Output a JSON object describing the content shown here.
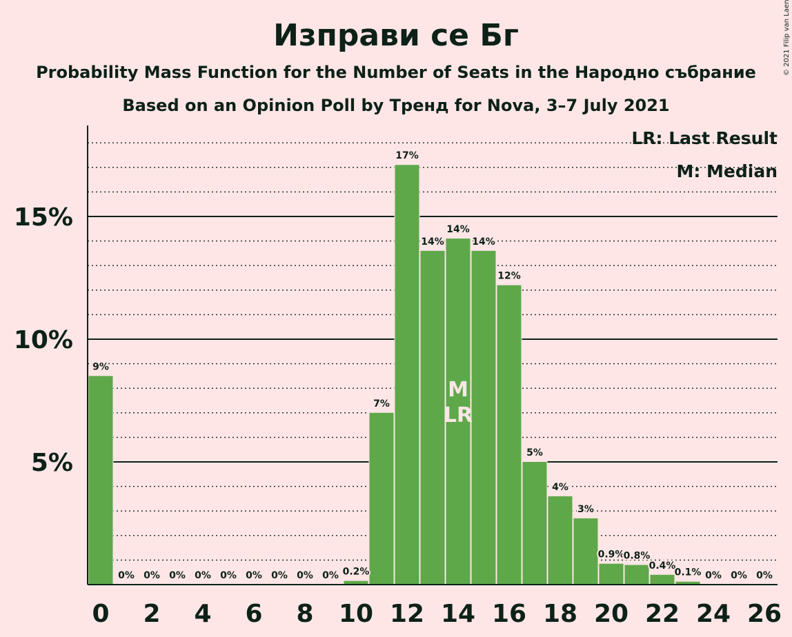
{
  "title": "Изправи се Бг",
  "subtitle": "Probability Mass Function for the Number of Seats in the Народно събрание",
  "subtitle2": "Based on an Opinion Poll by Тренд for Nova, 3–7 July 2021",
  "credit": "© 2021 Filip van Laenen",
  "legend": {
    "last_result": "LR: Last Result",
    "median": "M: Median",
    "position": "top-right"
  },
  "colors": {
    "background": "#ffe6e6",
    "bar": "#5ea84a",
    "text": "#0c2118"
  },
  "chart_data": {
    "type": "bar",
    "x": [
      0,
      1,
      2,
      3,
      4,
      5,
      6,
      7,
      8,
      9,
      10,
      11,
      12,
      13,
      14,
      15,
      16,
      17,
      18,
      19,
      20,
      21,
      22,
      23,
      24,
      25,
      26
    ],
    "values": [
      8.5,
      0,
      0,
      0,
      0,
      0,
      0,
      0,
      0,
      0,
      0.15,
      7.0,
      17.1,
      13.6,
      14.1,
      13.6,
      12.2,
      5.0,
      3.6,
      2.7,
      0.85,
      0.8,
      0.4,
      0.12,
      0,
      0,
      0
    ],
    "value_labels": [
      "9%",
      "0%",
      "0%",
      "0%",
      "0%",
      "0%",
      "0%",
      "0%",
      "0%",
      "0%",
      "0.2%",
      "7%",
      "17%",
      "14%",
      "14%",
      "14%",
      "12%",
      "5%",
      "4%",
      "3%",
      "0.9%",
      "0.8%",
      "0.4%",
      "0.1%",
      "0%",
      "0%",
      "0%"
    ],
    "x_tick_labels": [
      "0",
      "2",
      "4",
      "6",
      "8",
      "10",
      "12",
      "14",
      "16",
      "18",
      "20",
      "22",
      "24",
      "26"
    ],
    "y_tick_labels": [
      "5%",
      "10%",
      "15%"
    ],
    "y_ticks": [
      5,
      10,
      15
    ],
    "ylim": [
      0,
      18.6
    ],
    "xlim": [
      0,
      26
    ],
    "grid_minor_step": 1,
    "median_seat": 14,
    "median_marker": "M",
    "last_result_seat": 14,
    "last_result_marker": "LR"
  }
}
